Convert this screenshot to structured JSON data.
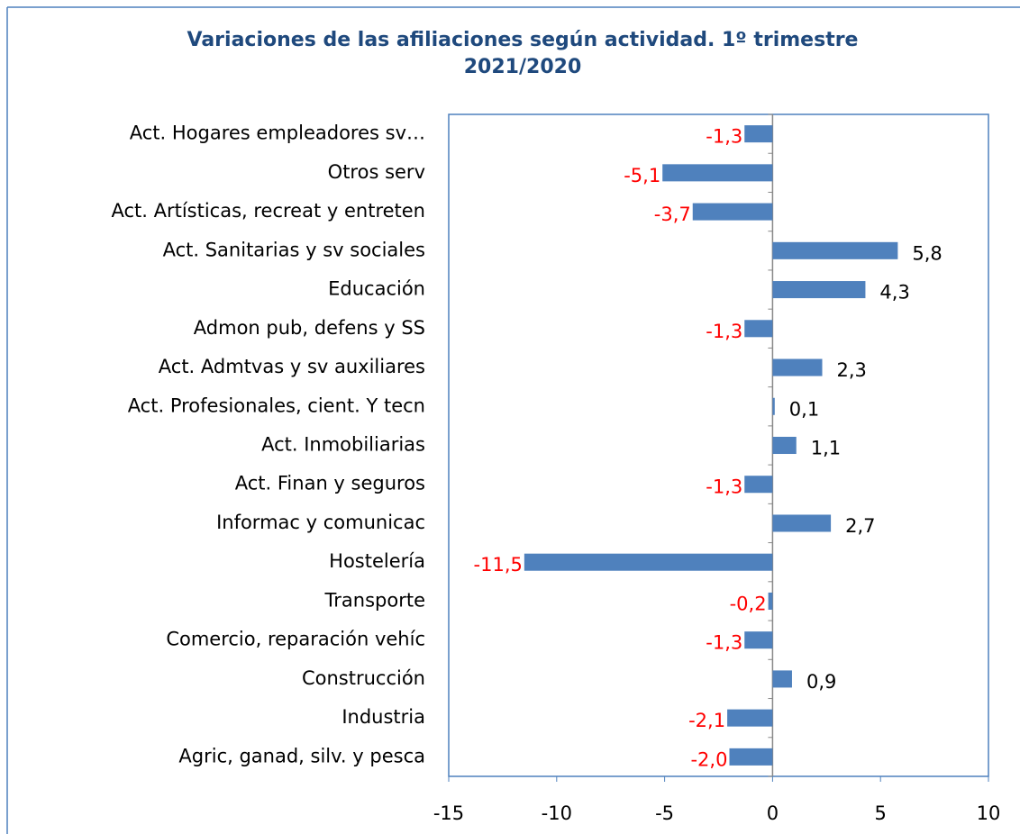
{
  "chart_data": {
    "type": "bar",
    "orientation": "horizontal",
    "title": "Variaciones de las afiliaciones según actividad. 1º trimestre 2021/2020",
    "categories": [
      "Act. Hogares empleadores sv…",
      "Otros serv",
      "Act. Artísticas, recreat y entreten",
      "Act. Sanitarias y sv sociales",
      "Educación",
      "Admon pub, defens y SS",
      "Act. Admtvas y sv auxiliares",
      "Act. Profesionales, cient. Y tecn",
      "Act. Inmobiliarias",
      "Act. Finan y seguros",
      "Informac y comunicac",
      "Hostelería",
      "Transporte",
      "Comercio, reparación vehíc",
      "Construcción",
      "Industria",
      "Agric, ganad, silv. y pesca"
    ],
    "values": [
      -1.3,
      -5.1,
      -3.7,
      5.8,
      4.3,
      -1.3,
      2.3,
      0.1,
      1.1,
      -1.3,
      2.7,
      -11.5,
      -0.2,
      -1.3,
      0.9,
      -2.1,
      -2.0
    ],
    "value_labels": [
      "-1,3",
      "-5,1",
      "-3,7",
      "5,8",
      "4,3",
      "-1,3",
      "2,3",
      "0,1",
      "1,1",
      "-1,3",
      "2,7",
      "-11,5",
      "-0,2",
      "-1,3",
      "0,9",
      "-2,1",
      "-2,0"
    ],
    "color": "#4f81bd",
    "label_color": "#000000",
    "negative_label_color": "#ff0000",
    "xlim": [
      -15,
      10
    ],
    "xticks": [
      -15,
      -10,
      -5,
      0,
      5,
      10
    ]
  }
}
